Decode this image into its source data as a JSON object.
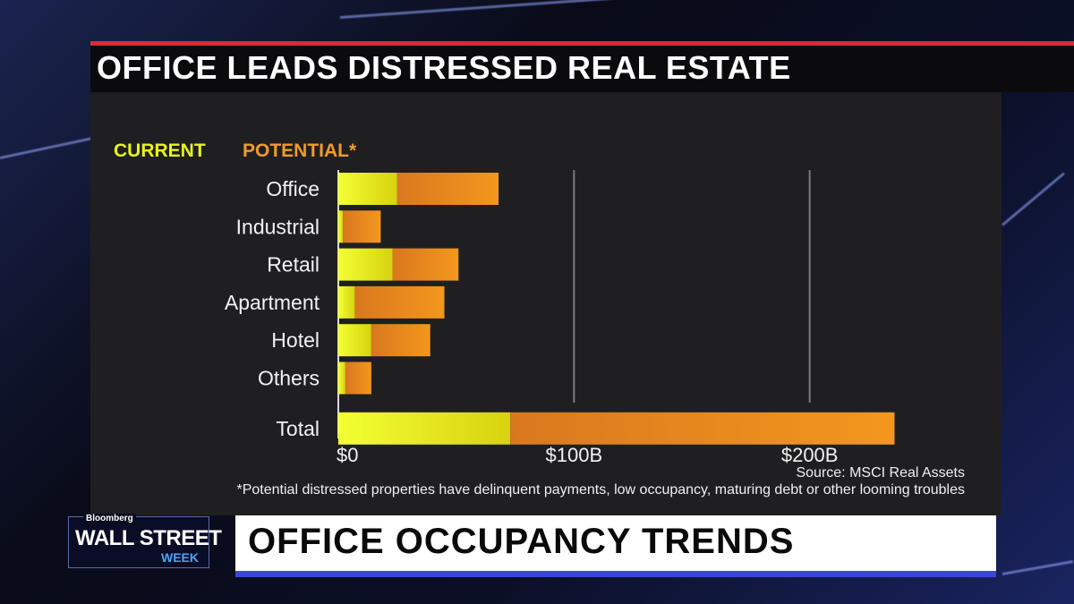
{
  "header": {
    "title": "OFFICE LEADS DISTRESSED REAL ESTATE"
  },
  "legend": {
    "current": "CURRENT",
    "potential": "POTENTIAL*"
  },
  "chart_data": {
    "type": "bar",
    "orientation": "horizontal",
    "stacked": true,
    "categories": [
      "Office",
      "Industrial",
      "Retail",
      "Apartment",
      "Hotel",
      "Others",
      "Total"
    ],
    "series": [
      {
        "name": "CURRENT",
        "values": [
          25,
          2,
          23,
          7,
          14,
          3,
          73
        ]
      },
      {
        "name": "POTENTIAL*",
        "values": [
          43,
          16,
          28,
          38,
          25,
          11,
          163
        ]
      }
    ],
    "xticks": [
      "$0",
      "$100B",
      "$200B"
    ],
    "xlim": [
      0,
      240
    ],
    "xtick_values": [
      0,
      100,
      200
    ],
    "colors": {
      "current": "#e8f31c",
      "potential": "#f09b2a"
    }
  },
  "source": "Source: MSCI Real Assets",
  "footnote": "*Potential distressed properties have delinquent payments, low occupancy, maturing debt or other looming troubles",
  "lower_third": {
    "title": "OFFICE OCCUPANCY TRENDS"
  },
  "logo": {
    "small": "Bloomberg",
    "main": "WALL STREET",
    "sub": "WEEK"
  }
}
